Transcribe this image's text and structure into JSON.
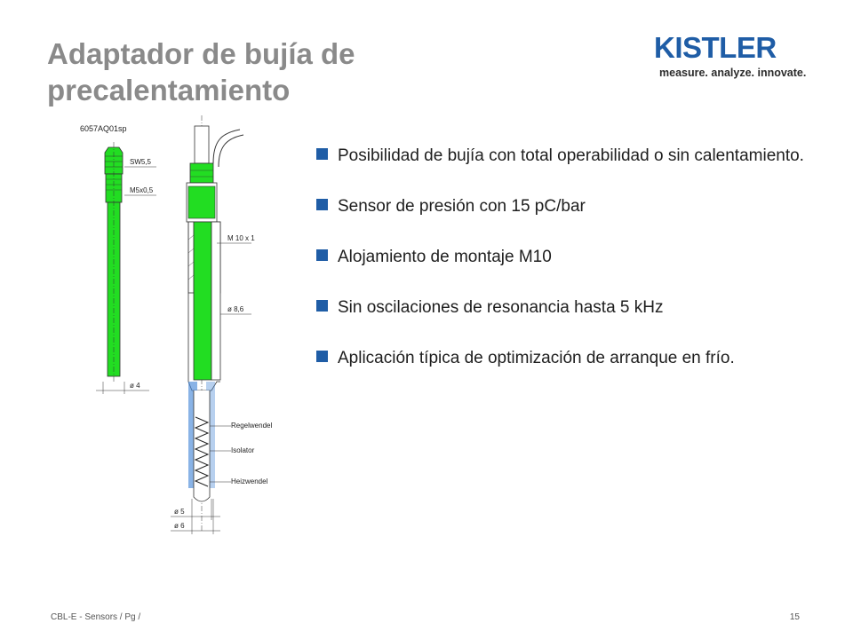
{
  "slide": {
    "title_line1": "Adaptador de bujía de",
    "title_line2": "precalentamiento"
  },
  "logo": {
    "wordmark": "KISTLER",
    "tagline": "measure. analyze. innovate."
  },
  "drawing": {
    "part_number": "6057AQ01sp",
    "labels": {
      "sw": "SW5,5",
      "m5": "M5x0,5",
      "d4": "ø 4",
      "m10": "M 10 x 1",
      "d86": "ø 8,6",
      "regelwendel": "Regelwendel",
      "isolator": "Isolator",
      "heizwendel": "Heizwendel",
      "d5": "ø 5",
      "d6": "ø 6"
    },
    "colors": {
      "highlight": "#22dd22",
      "line": "#333333",
      "blue": "#4a8ad8"
    }
  },
  "bullets": [
    "Posibilidad de bujía con total operabilidad o sin calentamiento.",
    "Sensor de presión con 15 pC/bar",
    "Alojamiento de montaje M10",
    "Sin oscilaciones de resonancia hasta 5 kHz",
    "Aplicación típica de optimización de arranque en frío."
  ],
  "footer": {
    "left": "CBL-E - Sensors / Pg /",
    "page": "15"
  },
  "theme": {
    "accent": "#1f5da6",
    "title_color": "#8a8a8a"
  }
}
